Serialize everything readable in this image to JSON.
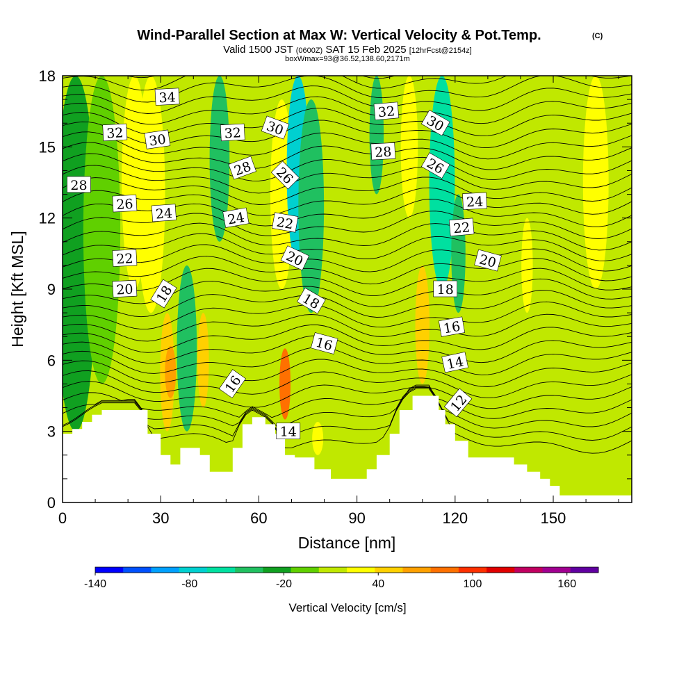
{
  "header": {
    "title": "Wind-Parallel Section at Max W: Vertical Velocity & Pot.Temp.",
    "copyright": "(C)",
    "valid_prefix": "Valid 1500 JST",
    "valid_utc": "(0600Z)",
    "valid_date": "SAT 15 Feb 2025",
    "forecast_info": "[12hrFcst@2154z]",
    "box_info": "boxWmax=93@36.52,138.60,2171m"
  },
  "colors": {
    "terrain": "#ffffff",
    "contour": "#000000",
    "palette": [
      "#0000ff",
      "#0050ff",
      "#00a0ff",
      "#00d0d0",
      "#00e0a0",
      "#20c060",
      "#10a020",
      "#60d000",
      "#c0e800",
      "#ffff00",
      "#ffd000",
      "#ffa000",
      "#ff7000",
      "#ff3000",
      "#e00000",
      "#c00060",
      "#a00090",
      "#6000a0"
    ]
  },
  "chart_data": {
    "type": "heatmap",
    "xlabel": "Distance [nm]",
    "ylabel": "Height [Kft MSL]",
    "xlim": [
      0,
      174
    ],
    "ylim": [
      0,
      18
    ],
    "x_ticks": [
      0,
      30,
      60,
      90,
      120,
      150
    ],
    "y_ticks": [
      0,
      3,
      6,
      9,
      12,
      15,
      18
    ],
    "colorbar": {
      "label": "Vertical Velocity [cm/s]",
      "min": -140,
      "max": 180,
      "step": 20,
      "tick_values": [
        -140,
        -80,
        -20,
        40,
        100,
        160
      ]
    },
    "terrain_profile": [
      {
        "x": 0,
        "h": 2.9
      },
      {
        "x": 3,
        "h": 3.1
      },
      {
        "x": 6,
        "h": 3.4
      },
      {
        "x": 9,
        "h": 3.7
      },
      {
        "x": 12,
        "h": 3.9
      },
      {
        "x": 23,
        "h": 3.9
      },
      {
        "x": 26,
        "h": 2.9
      },
      {
        "x": 30,
        "h": 2.0
      },
      {
        "x": 33,
        "h": 1.6
      },
      {
        "x": 36,
        "h": 2.3
      },
      {
        "x": 42,
        "h": 2.0
      },
      {
        "x": 45,
        "h": 1.3
      },
      {
        "x": 52,
        "h": 2.3
      },
      {
        "x": 55,
        "h": 3.3
      },
      {
        "x": 58,
        "h": 3.6
      },
      {
        "x": 62,
        "h": 3.3
      },
      {
        "x": 65,
        "h": 2.9
      },
      {
        "x": 68,
        "h": 2.0
      },
      {
        "x": 71,
        "h": 1.9
      },
      {
        "x": 77,
        "h": 1.4
      },
      {
        "x": 82,
        "h": 1.0
      },
      {
        "x": 91,
        "h": 1.0
      },
      {
        "x": 93,
        "h": 1.4
      },
      {
        "x": 96,
        "h": 2.0
      },
      {
        "x": 100,
        "h": 2.9
      },
      {
        "x": 103,
        "h": 3.9
      },
      {
        "x": 107,
        "h": 4.5
      },
      {
        "x": 112,
        "h": 4.5
      },
      {
        "x": 115,
        "h": 3.9
      },
      {
        "x": 117,
        "h": 3.3
      },
      {
        "x": 120,
        "h": 2.6
      },
      {
        "x": 124,
        "h": 1.9
      },
      {
        "x": 136,
        "h": 1.9
      },
      {
        "x": 138,
        "h": 1.6
      },
      {
        "x": 142,
        "h": 1.3
      },
      {
        "x": 146,
        "h": 1.0
      },
      {
        "x": 149,
        "h": 0.7
      },
      {
        "x": 152,
        "h": 0.3
      },
      {
        "x": 165,
        "h": 0.3
      },
      {
        "x": 174,
        "h": 0.6
      }
    ],
    "velocity_bands": [
      {
        "x": 4,
        "top": 18,
        "bottom": 3,
        "value": -20
      },
      {
        "x": 12,
        "top": 18,
        "bottom": 5,
        "value": 0
      },
      {
        "x": 22,
        "top": 18,
        "bottom": 9,
        "value": 40
      },
      {
        "x": 27,
        "top": 18,
        "bottom": 8,
        "value": 40
      },
      {
        "x": 32,
        "top": 8,
        "bottom": 3,
        "value": 60
      },
      {
        "x": 33,
        "top": 6.6,
        "bottom": 4.4,
        "value": 80
      },
      {
        "x": 38,
        "top": 10,
        "bottom": 3,
        "value": -40
      },
      {
        "x": 43,
        "top": 8,
        "bottom": 4,
        "value": 60
      },
      {
        "x": 48,
        "top": 18,
        "bottom": 11,
        "value": -40
      },
      {
        "x": 67,
        "top": 17,
        "bottom": 9,
        "value": 40
      },
      {
        "x": 68,
        "top": 6.5,
        "bottom": 3.5,
        "value": 100
      },
      {
        "x": 72,
        "top": 18,
        "bottom": 10,
        "value": -80
      },
      {
        "x": 76,
        "top": 17,
        "bottom": 8,
        "value": -40
      },
      {
        "x": 78,
        "top": 3.4,
        "bottom": 2.0,
        "value": 40
      },
      {
        "x": 96,
        "top": 18,
        "bottom": 13,
        "value": -40
      },
      {
        "x": 106,
        "top": 18,
        "bottom": 12,
        "value": 40
      },
      {
        "x": 110,
        "top": 10,
        "bottom": 5,
        "value": 60
      },
      {
        "x": 116,
        "top": 18,
        "bottom": 9,
        "value": -60
      },
      {
        "x": 121,
        "top": 13,
        "bottom": 8,
        "value": -40
      },
      {
        "x": 142,
        "top": 12,
        "bottom": 8,
        "value": 40
      },
      {
        "x": 163,
        "top": 18,
        "bottom": 9,
        "value": 40
      },
      {
        "x": 150,
        "top": 4.5,
        "bottom": 1,
        "value": 20
      }
    ],
    "theta_levels": [
      12,
      14,
      16,
      18,
      20,
      22,
      24,
      26,
      28,
      30,
      32,
      34
    ],
    "contour_labels": [
      {
        "x": 32,
        "y": 17.1,
        "text": "34",
        "angle": -3
      },
      {
        "x": 16,
        "y": 15.6,
        "text": "32",
        "angle": -3
      },
      {
        "x": 29,
        "y": 15.3,
        "text": "30",
        "angle": -8
      },
      {
        "x": 5,
        "y": 13.4,
        "text": "28",
        "angle": 0
      },
      {
        "x": 52,
        "y": 15.6,
        "text": "32",
        "angle": -3
      },
      {
        "x": 65,
        "y": 15.8,
        "text": "30",
        "angle": 20
      },
      {
        "x": 55,
        "y": 14.1,
        "text": "28",
        "angle": -20
      },
      {
        "x": 68,
        "y": 13.8,
        "text": "26",
        "angle": 45
      },
      {
        "x": 19,
        "y": 12.6,
        "text": "26",
        "angle": -3
      },
      {
        "x": 31,
        "y": 12.2,
        "text": "24",
        "angle": -4
      },
      {
        "x": 53,
        "y": 12.0,
        "text": "24",
        "angle": -10
      },
      {
        "x": 68,
        "y": 11.8,
        "text": "22",
        "angle": 10
      },
      {
        "x": 19,
        "y": 10.3,
        "text": "22",
        "angle": -3
      },
      {
        "x": 71,
        "y": 10.3,
        "text": "20",
        "angle": 25
      },
      {
        "x": 19,
        "y": 9.0,
        "text": "20",
        "angle": -3
      },
      {
        "x": 31,
        "y": 8.8,
        "text": "18",
        "angle": -58
      },
      {
        "x": 76,
        "y": 8.5,
        "text": "18",
        "angle": 30
      },
      {
        "x": 80,
        "y": 6.7,
        "text": "16",
        "angle": 15
      },
      {
        "x": 52,
        "y": 5.0,
        "text": "16",
        "angle": -55
      },
      {
        "x": 69,
        "y": 3.0,
        "text": "14",
        "angle": 0
      },
      {
        "x": 99,
        "y": 16.5,
        "text": "32",
        "angle": -5
      },
      {
        "x": 98,
        "y": 14.8,
        "text": "28",
        "angle": -3
      },
      {
        "x": 114,
        "y": 16.0,
        "text": "30",
        "angle": 30
      },
      {
        "x": 114,
        "y": 14.2,
        "text": "26",
        "angle": 30
      },
      {
        "x": 126,
        "y": 12.7,
        "text": "24",
        "angle": -3
      },
      {
        "x": 122,
        "y": 11.6,
        "text": "22",
        "angle": -5
      },
      {
        "x": 130,
        "y": 10.2,
        "text": "20",
        "angle": 15
      },
      {
        "x": 117,
        "y": 9.0,
        "text": "18",
        "angle": 0
      },
      {
        "x": 119,
        "y": 7.4,
        "text": "16",
        "angle": -10
      },
      {
        "x": 120,
        "y": 5.9,
        "text": "14",
        "angle": -12
      },
      {
        "x": 121,
        "y": 4.2,
        "text": "12",
        "angle": -50
      }
    ]
  }
}
